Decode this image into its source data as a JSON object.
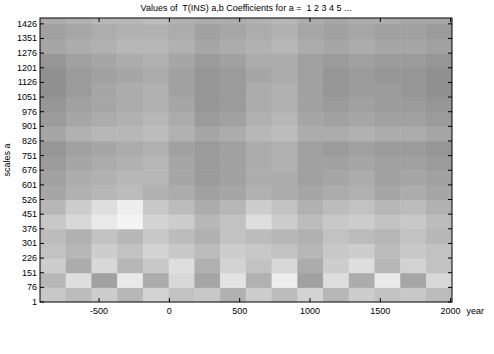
{
  "chart_data": {
    "type": "heatmap",
    "title": "Values of  T(INS) a,b Coefficients for a =  1 2 3 4 5 ...",
    "xlabel": "year",
    "ylabel": "scales a",
    "xlim": [
      -920,
      2010
    ],
    "ylim": [
      1,
      1456
    ],
    "xticks": [
      -500,
      0,
      500,
      1000,
      1500,
      2000
    ],
    "yticks": [
      1,
      76,
      151,
      226,
      301,
      376,
      451,
      526,
      601,
      676,
      751,
      826,
      901,
      976,
      1051,
      1126,
      1201,
      1276,
      1351,
      1426
    ],
    "cells": {
      "value_range": [
        0,
        92
      ],
      "x_edges": [
        -920,
        -737,
        -554,
        -371,
        -188,
        -5,
        178,
        361,
        544,
        727,
        910,
        1093,
        1276,
        1459,
        1642,
        1825,
        2008
      ],
      "y_edges": [
        1,
        76,
        151,
        226,
        301,
        376,
        451,
        526,
        601,
        676,
        751,
        826,
        901,
        976,
        1051,
        1126,
        1201,
        1276,
        1351,
        1426,
        1456
      ],
      "values": [
        [
          72,
          68,
          74,
          66,
          76,
          70,
          72,
          64,
          74,
          68,
          76,
          66,
          74,
          70,
          72,
          68
        ],
        [
          66,
          80,
          58,
          84,
          62,
          78,
          60,
          82,
          64,
          86,
          58,
          80,
          62,
          84,
          60,
          78
        ],
        [
          74,
          62,
          78,
          66,
          72,
          80,
          64,
          76,
          70,
          78,
          62,
          74,
          80,
          66,
          76,
          70
        ],
        [
          70,
          66,
          74,
          70,
          76,
          72,
          68,
          74,
          72,
          70,
          66,
          72,
          74,
          68,
          72,
          70
        ],
        [
          68,
          64,
          70,
          66,
          72,
          68,
          64,
          70,
          68,
          66,
          64,
          70,
          68,
          66,
          70,
          66
        ],
        [
          72,
          78,
          84,
          88,
          76,
          74,
          66,
          70,
          80,
          74,
          68,
          72,
          74,
          70,
          72,
          68
        ],
        [
          66,
          74,
          80,
          86,
          72,
          68,
          62,
          66,
          74,
          70,
          64,
          68,
          70,
          66,
          68,
          64
        ],
        [
          60,
          64,
          66,
          68,
          64,
          62,
          58,
          60,
          64,
          62,
          60,
          62,
          64,
          60,
          62,
          60
        ],
        [
          58,
          62,
          64,
          66,
          66,
          60,
          56,
          58,
          62,
          62,
          58,
          60,
          62,
          58,
          60,
          58
        ],
        [
          56,
          60,
          62,
          64,
          66,
          60,
          56,
          58,
          62,
          64,
          58,
          58,
          60,
          58,
          58,
          56
        ],
        [
          54,
          58,
          60,
          62,
          64,
          58,
          56,
          58,
          62,
          64,
          58,
          56,
          58,
          56,
          56,
          54
        ],
        [
          60,
          64,
          66,
          66,
          68,
          64,
          60,
          62,
          66,
          68,
          62,
          62,
          64,
          62,
          62,
          60
        ],
        [
          56,
          60,
          62,
          64,
          66,
          62,
          56,
          58,
          64,
          66,
          60,
          58,
          60,
          58,
          58,
          56
        ],
        [
          54,
          58,
          60,
          62,
          64,
          60,
          54,
          56,
          62,
          64,
          58,
          56,
          58,
          56,
          56,
          54
        ],
        [
          52,
          56,
          60,
          62,
          64,
          58,
          54,
          56,
          62,
          64,
          58,
          54,
          56,
          56,
          54,
          52
        ],
        [
          52,
          56,
          58,
          60,
          62,
          58,
          54,
          56,
          60,
          62,
          58,
          54,
          56,
          54,
          54,
          52
        ],
        [
          54,
          58,
          60,
          62,
          64,
          60,
          56,
          58,
          62,
          62,
          58,
          56,
          58,
          56,
          56,
          54
        ],
        [
          60,
          62,
          64,
          66,
          66,
          64,
          60,
          62,
          64,
          66,
          62,
          60,
          62,
          60,
          60,
          58
        ],
        [
          58,
          60,
          62,
          64,
          64,
          62,
          58,
          60,
          62,
          64,
          60,
          58,
          60,
          58,
          58,
          56
        ],
        [
          62,
          64,
          66,
          66,
          68,
          64,
          62,
          62,
          64,
          66,
          62,
          60,
          62,
          62,
          60,
          60
        ]
      ]
    }
  }
}
